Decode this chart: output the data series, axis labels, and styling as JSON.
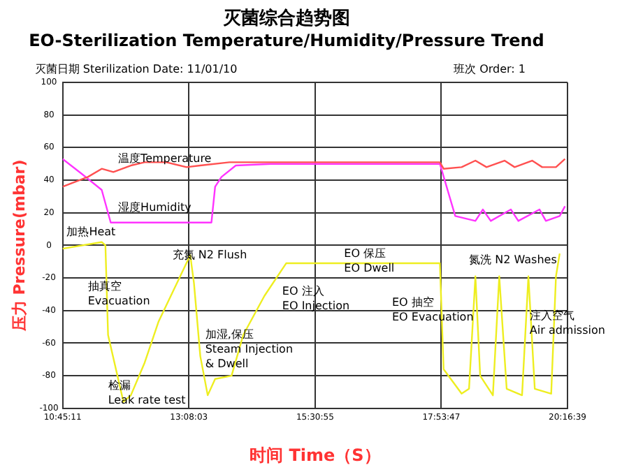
{
  "chart_data": {
    "type": "line",
    "title": "灭菌综合趋势图",
    "subtitle": "EO-Sterilization Temperature/Humidity/Pressure Trend",
    "xlabel": "时间 Time（S）",
    "ylabel": "压力 Pressure(mbar)",
    "xlim": [
      10.7531,
      20.2775
    ],
    "xticks": [
      {
        "value": 10.7531,
        "label": "10:45:11"
      },
      {
        "value": 13.1342,
        "label": "13:08:03"
      },
      {
        "value": 15.5153,
        "label": "15:30:55"
      },
      {
        "value": 17.8964,
        "label": "17:53:47"
      },
      {
        "value": 20.2775,
        "label": "20:16:39"
      }
    ],
    "ylim": [
      -100,
      100
    ],
    "yticks": [
      -100,
      -80,
      -60,
      -40,
      -20,
      0,
      20,
      40,
      60,
      80,
      100
    ],
    "grid": true,
    "legend": false,
    "marker": "none",
    "line_style": "solid",
    "series": [
      {
        "color": "#ff5050",
        "x": [
          10.7531,
          11.23,
          11.49,
          11.71,
          12.04,
          12.3,
          12.71,
          13.09,
          13.35,
          13.9,
          14.68,
          15.75,
          17.87,
          17.94,
          18.28,
          18.54,
          18.75,
          19.09,
          19.28,
          19.61,
          19.8,
          20.06,
          20.23
        ],
        "values": [
          36,
          42,
          47,
          45,
          49,
          51,
          51,
          48,
          49,
          51,
          51,
          51,
          51,
          47,
          48,
          52,
          48,
          52,
          48,
          52,
          48,
          48,
          53
        ]
      },
      {
        "color": "#ff33ff",
        "x": [
          10.7531,
          11.11,
          11.49,
          11.66,
          13.56,
          13.63,
          13.75,
          14.02,
          14.68,
          17.87,
          18.16,
          18.54,
          18.68,
          18.83,
          19.21,
          19.35,
          19.75,
          19.87,
          20.13,
          20.23
        ],
        "values": [
          53,
          44,
          34,
          14,
          14,
          36,
          42,
          49,
          50,
          50,
          18,
          15,
          22,
          15,
          22,
          15,
          22,
          15,
          18,
          24
        ]
      },
      {
        "color": "#eeee20",
        "x": [
          10.7531,
          11.49,
          11.56,
          11.61,
          11.9,
          12.04,
          12.3,
          12.56,
          12.97,
          13.16,
          13.23,
          13.35,
          13.49,
          13.63,
          13.94,
          14.16,
          14.56,
          14.97,
          15.23,
          16.02,
          17.87,
          17.94,
          18.28,
          18.42,
          18.54,
          18.63,
          18.87,
          18.99,
          19.13,
          19.42,
          19.54,
          19.66,
          19.97,
          20.06,
          20.13
        ],
        "values": [
          -2,
          2,
          0,
          -55,
          -96,
          -92,
          -72,
          -47,
          -19,
          -6,
          -23,
          -68,
          -92,
          -82,
          -80,
          -55,
          -31,
          -11,
          -11,
          -11,
          -11,
          -76,
          -91,
          -88,
          -19,
          -80,
          -92,
          -19,
          -88,
          -92,
          -19,
          -88,
          -91,
          -19,
          -5
        ]
      }
    ],
    "annotations": [
      "灭菌日期 Sterilization Date: 11/01/10",
      "班次 Order: 1",
      "温度Temperature",
      "湿度Humidity",
      "加热Heat",
      "抽真空\nEvacuation",
      "充氮 N2 Flush",
      "检漏\nLeak rate test",
      "加湿,保压\nSteam Injection\n& Dwell",
      "EO 注入\nEO Injection",
      "EO 保压\nEO Dwell",
      "EO 抽空\nEO Evacuation",
      "氮洗 N2 Washes",
      "注入空气\nAir admission"
    ]
  }
}
